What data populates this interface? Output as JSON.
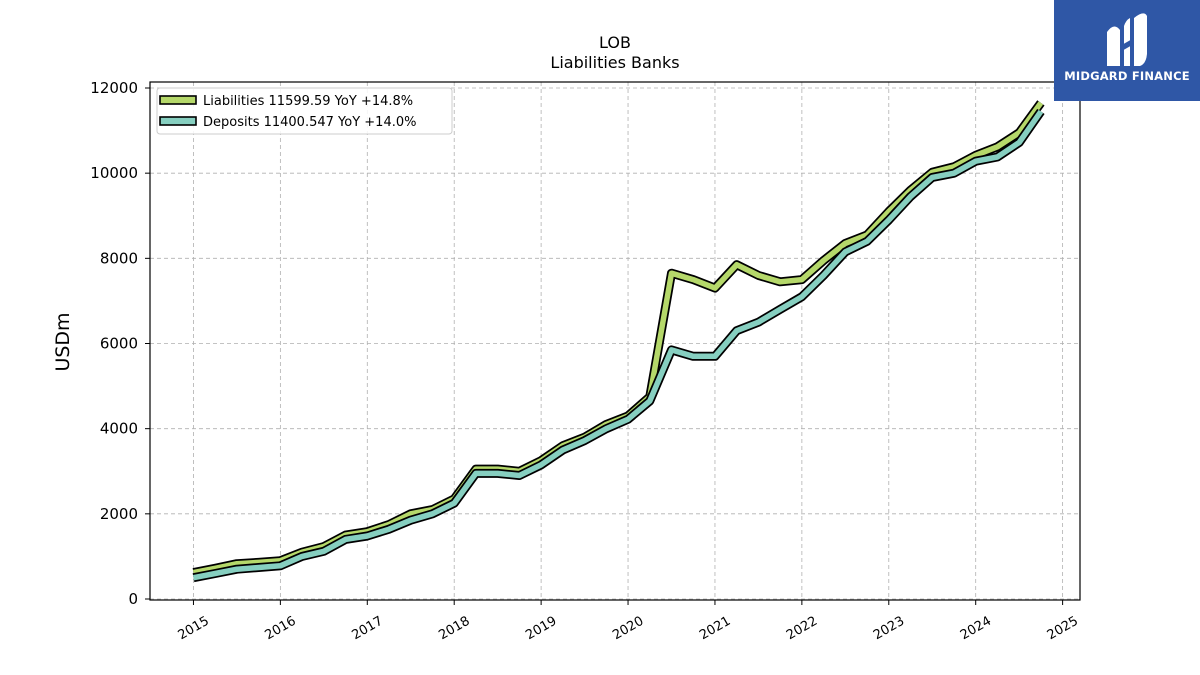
{
  "chart_data": {
    "type": "line",
    "title": "LOB",
    "subtitle": "Liabilities Banks",
    "ylabel": "USDm",
    "xlabel": "",
    "ylim": [
      0,
      12000
    ],
    "yticks": [
      0,
      2000,
      4000,
      6000,
      8000,
      10000,
      12000
    ],
    "xlim": [
      2014.5,
      2025.2
    ],
    "xticks": [
      "2015",
      "2016",
      "2017",
      "2018",
      "2019",
      "2020",
      "2021",
      "2022",
      "2023",
      "2024",
      "2025"
    ],
    "grid": true,
    "legend_position": "top-left",
    "series": [
      {
        "name": "Liabilities",
        "legend_label": "Liabilities  11599.59 YoY +14.8%",
        "color": "#b5d86a",
        "x": [
          2015.0,
          2015.25,
          2015.5,
          2015.75,
          2016.0,
          2016.25,
          2016.5,
          2016.75,
          2017.0,
          2017.25,
          2017.5,
          2017.75,
          2018.0,
          2018.25,
          2018.5,
          2018.75,
          2019.0,
          2019.25,
          2019.5,
          2019.75,
          2020.0,
          2020.25,
          2020.5,
          2020.75,
          2021.0,
          2021.25,
          2021.5,
          2021.75,
          2022.0,
          2022.25,
          2022.5,
          2022.75,
          2023.0,
          2023.25,
          2023.5,
          2023.75,
          2024.0,
          2024.25,
          2024.5,
          2024.75
        ],
        "values": [
          620,
          720,
          830,
          860,
          900,
          1100,
          1230,
          1500,
          1580,
          1750,
          2000,
          2100,
          2350,
          3050,
          3050,
          3000,
          3250,
          3600,
          3800,
          4100,
          4300,
          4750,
          7650,
          7500,
          7300,
          7850,
          7600,
          7450,
          7500,
          7950,
          8350,
          8550,
          9100,
          9600,
          10020,
          10150,
          10420,
          10620,
          10950,
          11650
        ]
      },
      {
        "name": "Deposits",
        "legend_label": "Deposits  11400.547 YoY +14.0%",
        "color": "#86cfc0",
        "x": [
          2015.0,
          2015.25,
          2015.5,
          2015.75,
          2016.0,
          2016.25,
          2016.5,
          2016.75,
          2017.0,
          2017.25,
          2017.5,
          2017.75,
          2018.0,
          2018.25,
          2018.5,
          2018.75,
          2019.0,
          2019.25,
          2019.5,
          2019.75,
          2020.0,
          2020.25,
          2020.5,
          2020.75,
          2021.0,
          2021.25,
          2021.5,
          2021.75,
          2022.0,
          2022.25,
          2022.5,
          2022.75,
          2023.0,
          2023.25,
          2023.5,
          2023.75,
          2024.0,
          2024.25,
          2024.5,
          2024.75
        ],
        "values": [
          500,
          600,
          700,
          740,
          780,
          1000,
          1120,
          1400,
          1480,
          1640,
          1850,
          2000,
          2250,
          2950,
          2950,
          2900,
          3150,
          3500,
          3720,
          4000,
          4220,
          4650,
          5850,
          5700,
          5700,
          6300,
          6500,
          6800,
          7100,
          7600,
          8150,
          8400,
          8900,
          9450,
          9900,
          10000,
          10280,
          10380,
          10720,
          11450
        ]
      }
    ]
  },
  "logo": {
    "brand": "MIDGARD FINANCE",
    "color": "#2f57a6",
    "icon": "midgard-logo-icon"
  }
}
